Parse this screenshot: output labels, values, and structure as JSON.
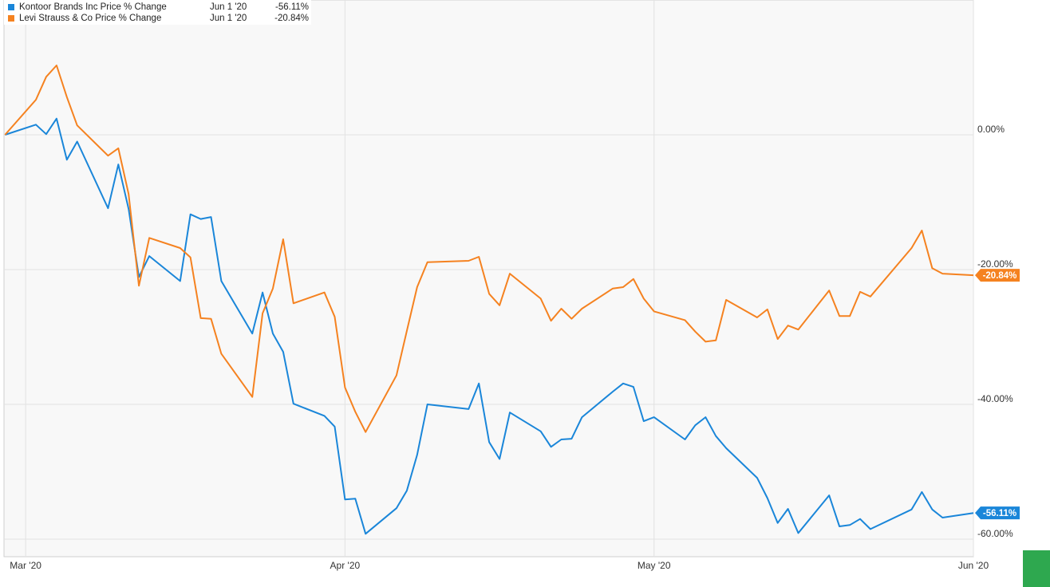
{
  "chart_data": {
    "type": "line",
    "legend_date": "Jun 1 '20",
    "x": [
      -2,
      1,
      2,
      3,
      4,
      5,
      8,
      9,
      10,
      11,
      12,
      15,
      16,
      17,
      18,
      19,
      22,
      23,
      24,
      25,
      26,
      29,
      30,
      31,
      32,
      33,
      36,
      37,
      38,
      39,
      43,
      44,
      45,
      46,
      47,
      50,
      51,
      52,
      53,
      54,
      57,
      58,
      59,
      60,
      61,
      64,
      65,
      66,
      67,
      68,
      71,
      72,
      73,
      74,
      75,
      78,
      79,
      80,
      81,
      82,
      86,
      87,
      88,
      89,
      92
    ],
    "xlim": [
      -2.1,
      92
    ],
    "xticks": [
      {
        "value": 0,
        "label": "Mar '20"
      },
      {
        "value": 31,
        "label": "Apr '20"
      },
      {
        "value": 61,
        "label": "May '20"
      },
      {
        "value": 92,
        "label": "Jun '20"
      }
    ],
    "ylim": [
      -62.6,
      20
    ],
    "yticks": [
      {
        "value": 0,
        "label": "0.00%"
      },
      {
        "value": -20,
        "label": "-20.00%"
      },
      {
        "value": -40,
        "label": "-40.00%"
      },
      {
        "value": -60,
        "label": "-60.00%"
      }
    ],
    "grid": true,
    "series": [
      {
        "name": "Kontoor Brands Inc Price % Change",
        "color": "#1a86d9",
        "last_label": "-56.11%",
        "values": [
          0,
          1.5,
          0.1,
          2.4,
          -3.7,
          -1.0,
          -10.9,
          -4.4,
          -11.0,
          -21.1,
          -18.0,
          -21.7,
          -11.8,
          -12.5,
          -12.2,
          -21.7,
          -29.5,
          -23.4,
          -29.5,
          -32.2,
          -39.9,
          -41.7,
          -43.3,
          -54.1,
          -54.0,
          -59.2,
          -55.4,
          -52.8,
          -47.5,
          -40.0,
          -40.7,
          -36.9,
          -45.6,
          -48.1,
          -41.2,
          -44.0,
          -46.3,
          -45.2,
          -45.1,
          -41.9,
          -38.1,
          -36.9,
          -37.4,
          -42.5,
          -41.9,
          -45.2,
          -43.1,
          -41.9,
          -44.7,
          -46.5,
          -50.9,
          -53.9,
          -57.6,
          -55.5,
          -59.1,
          -53.5,
          -58.1,
          -57.9,
          -57.0,
          -58.5,
          -55.6,
          -53.0,
          -55.6,
          -56.8,
          -56.11
        ]
      },
      {
        "name": "Levi Strauss & Co Price % Change",
        "color": "#f58220",
        "last_label": "-20.84%",
        "values": [
          0,
          5.2,
          8.6,
          10.3,
          5.6,
          1.4,
          -3.1,
          -2.0,
          -8.8,
          -22.4,
          -15.3,
          -16.8,
          -18.2,
          -27.2,
          -27.3,
          -32.5,
          -38.9,
          -26.5,
          -22.8,
          -15.5,
          -25.0,
          -23.4,
          -27.0,
          -37.5,
          -41.1,
          -44.1,
          -35.7,
          -29.1,
          -22.6,
          -18.9,
          -18.7,
          -18.1,
          -23.6,
          -25.3,
          -20.6,
          -24.3,
          -27.6,
          -25.8,
          -27.3,
          -25.8,
          -22.8,
          -22.6,
          -21.4,
          -24.3,
          -26.2,
          -27.5,
          -29.2,
          -30.7,
          -30.5,
          -24.5,
          -27.1,
          -25.9,
          -30.3,
          -28.3,
          -28.9,
          -23.1,
          -26.9,
          -26.9,
          -23.3,
          -24.0,
          -16.8,
          -14.2,
          -19.8,
          -20.6,
          -20.84
        ]
      }
    ]
  }
}
